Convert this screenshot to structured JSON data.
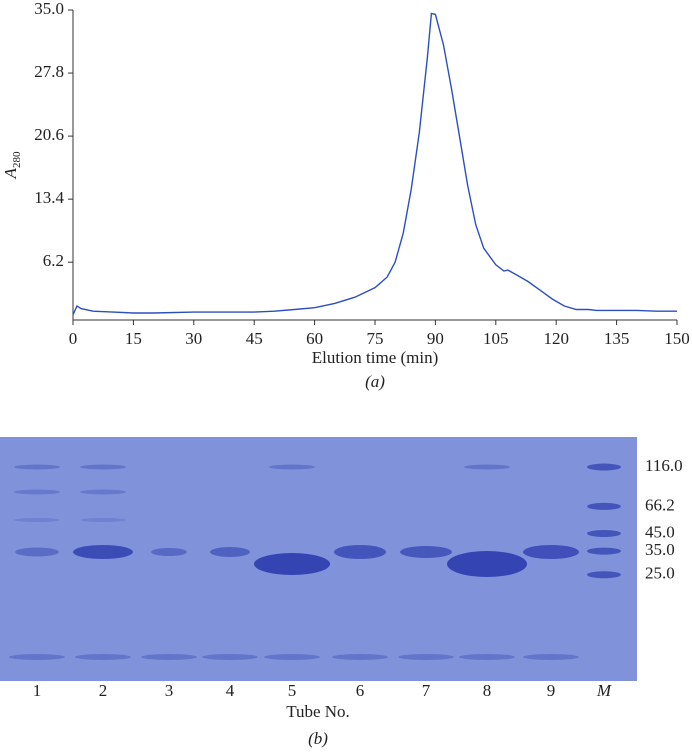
{
  "chart_data": [
    {
      "type": "line",
      "caption": "(a)",
      "xlabel": "Elution time (min)",
      "ylabel": {
        "symbol": "A",
        "subscript": "280"
      },
      "x": [
        0,
        1,
        2,
        5,
        10,
        15,
        20,
        30,
        40,
        45,
        50,
        55,
        60,
        65,
        70,
        75,
        78,
        80,
        82,
        84,
        86,
        88,
        89,
        90,
        92,
        94,
        96,
        98,
        100,
        102,
        105,
        107,
        108,
        110,
        113,
        116,
        119,
        122,
        125,
        128,
        130,
        135,
        140,
        145,
        150
      ],
      "series": [
        {
          "color": "#2b4fc0",
          "values": [
            0.2,
            1.2,
            0.9,
            0.6,
            0.5,
            0.4,
            0.4,
            0.5,
            0.5,
            0.5,
            0.6,
            0.8,
            1.0,
            1.5,
            2.2,
            3.3,
            4.5,
            6.2,
            9.5,
            14.5,
            21,
            29.5,
            34.6,
            34.5,
            31,
            26,
            20.5,
            15,
            10.5,
            7.8,
            5.9,
            5.2,
            5.3,
            4.8,
            4.0,
            3.0,
            2.0,
            1.2,
            0.8,
            0.8,
            0.7,
            0.7,
            0.7,
            0.6,
            0.6
          ]
        }
      ],
      "xlim": [
        0,
        150
      ],
      "xticks": [
        0,
        15,
        30,
        45,
        60,
        75,
        90,
        105,
        120,
        135,
        150
      ],
      "ylim": [
        -0.4,
        35.0
      ],
      "yticks": [
        6.2,
        13.4,
        20.6,
        27.8,
        {
          "value": 35,
          "label": "35.0"
        }
      ]
    },
    {
      "type": "gel",
      "caption": "(b)",
      "xlabel": "Tube No.",
      "categories": [
        "1",
        "2",
        "3",
        "4",
        "5",
        "6",
        "7",
        "8",
        "9",
        "M"
      ],
      "log_scale": true,
      "ylim": [
        178,
        5.5
      ],
      "yticks": [
        {
          "value": 116,
          "label": "116.0"
        },
        66.2,
        {
          "value": 45,
          "label": "45.0"
        },
        {
          "value": 35,
          "label": "35.0"
        },
        {
          "value": 25,
          "label": "25.0"
        }
      ],
      "color": "#8093da"
    }
  ]
}
